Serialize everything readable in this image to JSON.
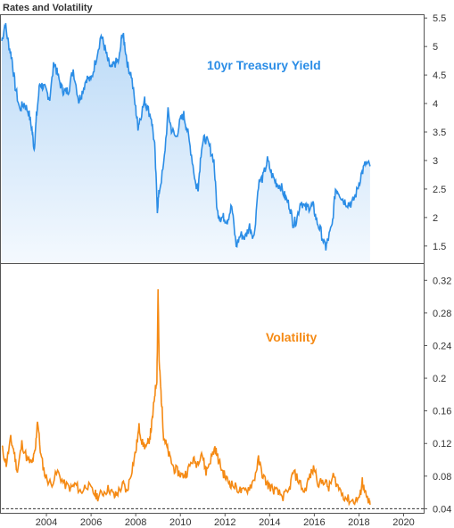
{
  "title": "Rates and Volatility",
  "colors": {
    "yield_line": "#2b8de6",
    "yield_fill_top": "#b9d9f7",
    "yield_fill_bottom": "#f4f9fe",
    "volatility_line": "#f58a14",
    "axis": "#555555",
    "baseline": "#333333"
  },
  "chart_data": [
    {
      "type": "area",
      "title": "",
      "label": "10yr Treasury Yield",
      "xlabel": "",
      "ylabel": "",
      "ylim": [
        1.2,
        5.55
      ],
      "yticks": [
        1.5,
        2,
        2.5,
        3,
        3.5,
        4,
        4.5,
        5,
        5.5
      ],
      "ytick_labels": [
        "1.5",
        "2",
        "2.5",
        "3",
        "3.5",
        "4",
        "4.5",
        "5",
        "5.5"
      ],
      "grid": false,
      "series": [
        {
          "x": [
            2002.0,
            2002.15,
            2002.3,
            2002.45,
            2002.6,
            2002.8,
            2003.0,
            2003.2,
            2003.35,
            2003.45,
            2003.55,
            2003.7,
            2003.85,
            2004.0,
            2004.15,
            2004.35,
            2004.5,
            2004.7,
            2004.85,
            2005.0,
            2005.2,
            2005.45,
            2005.6,
            2005.8,
            2006.0,
            2006.2,
            2006.45,
            2006.6,
            2006.75,
            2006.9,
            2007.05,
            2007.25,
            2007.4,
            2007.5,
            2007.65,
            2007.8,
            2008.0,
            2008.1,
            2008.2,
            2008.4,
            2008.5,
            2008.7,
            2008.85,
            2008.97,
            2009.05,
            2009.25,
            2009.45,
            2009.6,
            2009.8,
            2010.0,
            2010.15,
            2010.3,
            2010.5,
            2010.7,
            2010.8,
            2010.95,
            2011.1,
            2011.3,
            2011.5,
            2011.65,
            2011.8,
            2011.95,
            2012.1,
            2012.3,
            2012.5,
            2012.7,
            2012.9,
            2013.1,
            2013.3,
            2013.5,
            2013.7,
            2013.9,
            2014.1,
            2014.3,
            2014.5,
            2014.7,
            2014.9,
            2015.05,
            2015.2,
            2015.4,
            2015.6,
            2015.8,
            2015.95,
            2016.1,
            2016.3,
            2016.5,
            2016.6,
            2016.8,
            2016.95,
            2017.1,
            2017.3,
            2017.5,
            2017.7,
            2017.9,
            2018.1,
            2018.3,
            2018.5
          ],
          "y": [
            5.1,
            5.4,
            5.05,
            4.8,
            4.3,
            3.9,
            4.0,
            3.85,
            3.55,
            3.2,
            3.75,
            4.35,
            4.3,
            4.2,
            4.1,
            4.75,
            4.5,
            4.25,
            4.2,
            4.25,
            4.6,
            4.05,
            4.2,
            4.45,
            4.4,
            4.75,
            5.2,
            5.0,
            4.75,
            4.6,
            4.7,
            4.75,
            5.25,
            5.05,
            4.65,
            4.5,
            3.9,
            3.6,
            3.75,
            4.05,
            3.95,
            3.75,
            3.25,
            2.15,
            2.45,
            2.9,
            3.85,
            3.55,
            3.4,
            3.7,
            3.8,
            3.55,
            3.1,
            2.55,
            2.55,
            3.25,
            3.4,
            3.25,
            3.0,
            2.1,
            2.0,
            2.0,
            1.95,
            2.2,
            1.5,
            1.7,
            1.65,
            1.85,
            1.65,
            2.6,
            2.7,
            3.0,
            2.75,
            2.6,
            2.55,
            2.35,
            2.2,
            1.9,
            1.95,
            2.3,
            2.15,
            2.2,
            2.2,
            1.95,
            1.75,
            1.45,
            1.6,
            1.85,
            2.5,
            2.45,
            2.3,
            2.25,
            2.25,
            2.45,
            2.75,
            2.95,
            2.9
          ]
        }
      ]
    },
    {
      "type": "line",
      "title": "",
      "label": "Volatility",
      "xlabel": "",
      "ylabel": "",
      "ylim": [
        0.035,
        0.34
      ],
      "yticks": [
        0.04,
        0.08,
        0.12,
        0.16,
        0.2,
        0.24,
        0.28,
        0.32
      ],
      "ytick_labels": [
        "0.04",
        "0.08",
        "0.12",
        "0.16",
        "0.2",
        "0.24",
        "0.28",
        "0.32"
      ],
      "reference_line": 0.04,
      "xlim": [
        2002.0,
        2020.9
      ],
      "xticks": [
        2004,
        2006,
        2008,
        2010,
        2012,
        2014,
        2016,
        2018,
        2020
      ],
      "xtick_labels": [
        "2004",
        "2006",
        "2008",
        "2010",
        "2012",
        "2014",
        "2016",
        "2018",
        "2020"
      ],
      "grid": false,
      "series": [
        {
          "x": [
            2002.0,
            2002.2,
            2002.4,
            2002.55,
            2002.7,
            2002.9,
            2003.15,
            2003.35,
            2003.5,
            2003.6,
            2003.75,
            2003.95,
            2004.2,
            2004.5,
            2004.8,
            2005.1,
            2005.3,
            2005.55,
            2005.8,
            2006.1,
            2006.3,
            2006.55,
            2006.8,
            2007.05,
            2007.2,
            2007.45,
            2007.6,
            2007.8,
            2008.0,
            2008.15,
            2008.3,
            2008.5,
            2008.65,
            2008.75,
            2008.85,
            2008.95,
            2009.0,
            2009.05,
            2009.15,
            2009.25,
            2009.35,
            2009.5,
            2009.7,
            2009.9,
            2010.1,
            2010.3,
            2010.55,
            2010.75,
            2010.95,
            2011.15,
            2011.35,
            2011.55,
            2011.7,
            2011.9,
            2012.1,
            2012.3,
            2012.55,
            2012.8,
            2013.05,
            2013.3,
            2013.5,
            2013.7,
            2013.9,
            2014.1,
            2014.35,
            2014.6,
            2014.85,
            2015.05,
            2015.3,
            2015.55,
            2015.8,
            2016.0,
            2016.2,
            2016.45,
            2016.65,
            2016.85,
            2017.1,
            2017.35,
            2017.6,
            2017.85,
            2018.05,
            2018.15,
            2018.25,
            2018.4,
            2018.5
          ],
          "y": [
            0.115,
            0.095,
            0.125,
            0.11,
            0.085,
            0.12,
            0.1,
            0.095,
            0.11,
            0.15,
            0.105,
            0.08,
            0.07,
            0.085,
            0.07,
            0.065,
            0.07,
            0.06,
            0.07,
            0.06,
            0.055,
            0.06,
            0.065,
            0.055,
            0.06,
            0.07,
            0.06,
            0.085,
            0.11,
            0.14,
            0.12,
            0.115,
            0.13,
            0.15,
            0.18,
            0.2,
            0.31,
            0.22,
            0.175,
            0.13,
            0.12,
            0.105,
            0.09,
            0.085,
            0.08,
            0.085,
            0.1,
            0.095,
            0.11,
            0.085,
            0.1,
            0.115,
            0.1,
            0.085,
            0.075,
            0.07,
            0.065,
            0.06,
            0.065,
            0.075,
            0.1,
            0.08,
            0.07,
            0.065,
            0.06,
            0.055,
            0.06,
            0.085,
            0.075,
            0.06,
            0.08,
            0.09,
            0.07,
            0.075,
            0.065,
            0.08,
            0.065,
            0.055,
            0.05,
            0.05,
            0.055,
            0.075,
            0.06,
            0.05,
            0.045
          ]
        }
      ]
    }
  ]
}
